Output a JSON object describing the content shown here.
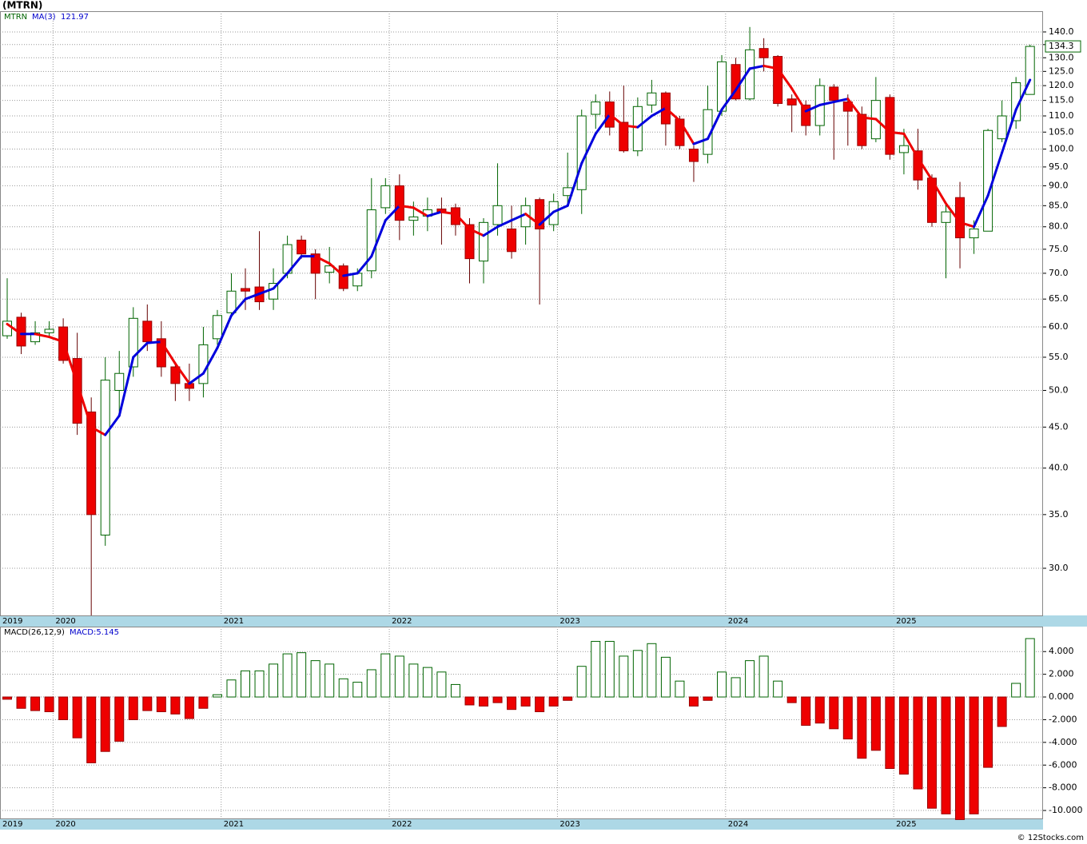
{
  "title": "(MTRN)",
  "copyright": "© 12Stocks.com",
  "chart_data": [
    {
      "type": "candlestick",
      "symbol": "MTRN",
      "log_scale": true,
      "grid": true,
      "up_color": "#006400",
      "down_color": "#ee0000",
      "categories": [
        "2019",
        null,
        null,
        null,
        "2020",
        null,
        null,
        null,
        null,
        null,
        null,
        null,
        null,
        null,
        null,
        null,
        "2021",
        null,
        null,
        null,
        null,
        null,
        null,
        null,
        null,
        null,
        null,
        null,
        "2022",
        null,
        null,
        null,
        null,
        null,
        null,
        null,
        null,
        null,
        null,
        null,
        "2023",
        null,
        null,
        null,
        null,
        null,
        null,
        null,
        null,
        null,
        null,
        null,
        "2024",
        null,
        null,
        null,
        null,
        null,
        null,
        null,
        null,
        null,
        null,
        null,
        "2025",
        null,
        null,
        null,
        null,
        null,
        null,
        null,
        null,
        null
      ],
      "open": [
        58.5,
        61.7,
        57.5,
        59,
        60,
        54.8,
        47,
        33,
        50,
        53.5,
        61,
        58,
        53.5,
        51,
        51,
        58,
        62.5,
        67,
        67.3,
        65,
        70,
        77,
        74,
        70.2,
        71.5,
        67.5,
        70.5,
        84.5,
        90,
        81.5,
        82.5,
        84.2,
        84.5,
        80.5,
        72.5,
        80.5,
        79.5,
        80,
        86.5,
        80.5,
        87.5,
        89,
        110.5,
        114.5,
        108,
        99.5,
        113.5,
        117.5,
        109,
        100,
        98.5,
        111.5,
        127.5,
        115.5,
        133.5,
        130.5,
        115.5,
        113.5,
        107,
        119.5,
        114.5,
        110.5,
        103,
        116,
        99,
        99.5,
        92,
        81,
        87,
        77.5,
        79,
        103,
        108.5,
        117
      ],
      "high": [
        69,
        62.5,
        61,
        61,
        61.5,
        59,
        49,
        55,
        56,
        63.5,
        64,
        61,
        54,
        54,
        60,
        63,
        70,
        71,
        79,
        71,
        78,
        78,
        75,
        75.5,
        72,
        71,
        92,
        92,
        93,
        86,
        87,
        87,
        85.5,
        82,
        82,
        96,
        85,
        87,
        87,
        88,
        99,
        112,
        117,
        118,
        120,
        116,
        122,
        118,
        110,
        101,
        120,
        131,
        130,
        142,
        137.5,
        131,
        117,
        115,
        122.5,
        120.5,
        117,
        113,
        123,
        117,
        106,
        106,
        93,
        86,
        91,
        81.5,
        106,
        115,
        123,
        135
      ],
      "low": [
        58,
        55.5,
        57,
        58.5,
        54,
        44,
        26.2,
        32,
        47,
        52,
        56,
        52,
        48.5,
        48.5,
        49,
        57,
        62,
        63,
        63,
        63,
        69,
        73,
        65,
        68,
        66.5,
        66.5,
        69,
        83,
        77,
        78,
        79,
        76,
        78,
        68,
        68,
        78,
        73,
        76,
        64,
        79,
        85,
        83,
        106,
        104,
        99,
        98,
        111,
        101,
        100,
        91,
        96,
        110,
        115,
        115,
        125,
        113,
        105,
        104,
        104,
        97,
        101,
        100,
        102,
        97,
        93,
        89,
        80,
        69,
        71,
        74,
        79,
        102,
        106,
        117
      ],
      "close": [
        61,
        56.8,
        59,
        59.6,
        54.5,
        45.5,
        35,
        51.5,
        52.5,
        61.5,
        57.5,
        53.5,
        51,
        50.3,
        57,
        62,
        66.5,
        66.5,
        64.5,
        68,
        76,
        74,
        70,
        71.5,
        67,
        70,
        84,
        90,
        81.5,
        82.3,
        84,
        83.5,
        80.5,
        73,
        81,
        85,
        74.5,
        85,
        79.5,
        86,
        89.5,
        110,
        114.5,
        106.5,
        99.5,
        113,
        117.5,
        107.5,
        101,
        96.5,
        112,
        128.5,
        115.5,
        133,
        130,
        114,
        113.5,
        107,
        120,
        115,
        111.5,
        101,
        115,
        98.5,
        101,
        91.5,
        81,
        83.5,
        77.5,
        79.5,
        105.5,
        110,
        121,
        134.3
      ],
      "last_label": "134.3",
      "overlays": [
        {
          "name": "MA(3)",
          "value_label": "121.97",
          "up_color": "#0000dd",
          "down_color": "#ee0000",
          "values": [
            60.5,
            58.8,
            58.8,
            58.3,
            57.5,
            51,
            45,
            44,
            46.5,
            55,
            57.3,
            57.5,
            54,
            51,
            52.5,
            56.5,
            62,
            65,
            66,
            67,
            70,
            73.5,
            73.5,
            72,
            69.5,
            70,
            73.5,
            81.5,
            85,
            84.5,
            82.5,
            83.5,
            83,
            79.5,
            78,
            80,
            81.5,
            83,
            80.5,
            83.5,
            85,
            96,
            104.5,
            110.5,
            107,
            106.5,
            110,
            112.5,
            108.5,
            101.5,
            103,
            112,
            118.5,
            126,
            127,
            126,
            119,
            111.5,
            113.5,
            114.5,
            115.5,
            109.5,
            109,
            105,
            104.5,
            97.5,
            91.5,
            85.5,
            81,
            80,
            87.5,
            99,
            112,
            121.97
          ]
        }
      ],
      "ylim": [
        26.2,
        148.6
      ],
      "yticks": [
        {
          "value": 30,
          "label": "30.0"
        },
        {
          "value": 35,
          "label": "35.0"
        },
        {
          "value": 40,
          "label": "40.0"
        },
        {
          "value": 45,
          "label": "45.0"
        },
        {
          "value": 50,
          "label": "50.0"
        },
        {
          "value": 55,
          "label": "55.0"
        },
        {
          "value": 60,
          "label": "60.0"
        },
        {
          "value": 65,
          "label": "65.0"
        },
        {
          "value": 70,
          "label": "70.0"
        },
        {
          "value": 75,
          "label": "75.0"
        },
        {
          "value": 80,
          "label": "80.0"
        },
        {
          "value": 85,
          "label": "85.0"
        },
        {
          "value": 90,
          "label": "90.0"
        },
        {
          "value": 95,
          "label": "95.0"
        },
        {
          "value": 100,
          "label": "100.0"
        },
        {
          "value": 105,
          "label": "105.0"
        },
        {
          "value": 110,
          "label": "110.0"
        },
        {
          "value": 115,
          "label": "115.0"
        },
        {
          "value": 120,
          "label": "120.0"
        },
        {
          "value": 125,
          "label": "125.0"
        },
        {
          "value": 130,
          "label": "130.0"
        },
        {
          "value": 135,
          "label": "135.0"
        },
        {
          "value": 140,
          "label": "140.0"
        }
      ]
    },
    {
      "type": "bar",
      "name": "MACD(26,12,9)",
      "value_label": "MACD:5.145",
      "grid": true,
      "up_color": "#006400",
      "down_color": "#ee0000",
      "categories": [
        "2019",
        null,
        null,
        null,
        "2020",
        null,
        null,
        null,
        null,
        null,
        null,
        null,
        null,
        null,
        null,
        null,
        "2021",
        null,
        null,
        null,
        null,
        null,
        null,
        null,
        null,
        null,
        null,
        null,
        "2022",
        null,
        null,
        null,
        null,
        null,
        null,
        null,
        null,
        null,
        null,
        null,
        "2023",
        null,
        null,
        null,
        null,
        null,
        null,
        null,
        null,
        null,
        null,
        null,
        "2024",
        null,
        null,
        null,
        null,
        null,
        null,
        null,
        null,
        null,
        null,
        null,
        "2025",
        null,
        null,
        null,
        null,
        null,
        null,
        null,
        null,
        null
      ],
      "values": [
        -0.2,
        -1,
        -1.2,
        -1.3,
        -2,
        -3.6,
        -5.8,
        -4.8,
        -3.9,
        -2,
        -1.2,
        -1.3,
        -1.5,
        -1.9,
        -1,
        0.2,
        1.5,
        2.3,
        2.3,
        2.9,
        3.8,
        3.9,
        3.2,
        2.9,
        1.6,
        1.3,
        2.4,
        3.8,
        3.6,
        2.9,
        2.6,
        2.2,
        1.1,
        -0.7,
        -0.8,
        -0.5,
        -1.1,
        -0.8,
        -1.3,
        -0.8,
        -0.3,
        2.7,
        4.9,
        4.9,
        3.6,
        4.1,
        4.7,
        3.5,
        1.4,
        -0.8,
        -0.3,
        2.2,
        1.7,
        3.2,
        3.6,
        1.4,
        -0.5,
        -2.5,
        -2.3,
        -2.8,
        -3.7,
        -5.4,
        -4.7,
        -6.3,
        -6.8,
        -8.1,
        -9.8,
        -10.3,
        -10.8,
        -10.3,
        -6.2,
        -2.6,
        1.2,
        5.145
      ],
      "ylim": [
        -10.7,
        6.2
      ],
      "yticks": [
        {
          "value": 4,
          "label": "4.000"
        },
        {
          "value": 2,
          "label": "2.000"
        },
        {
          "value": 0,
          "label": "0.000"
        },
        {
          "value": -2,
          "label": "-2.000"
        },
        {
          "value": -4,
          "label": "-4.000"
        },
        {
          "value": -6,
          "label": "-6.000"
        },
        {
          "value": -8,
          "label": "-8.000"
        },
        {
          "value": -10,
          "label": "-10.000"
        }
      ]
    }
  ]
}
